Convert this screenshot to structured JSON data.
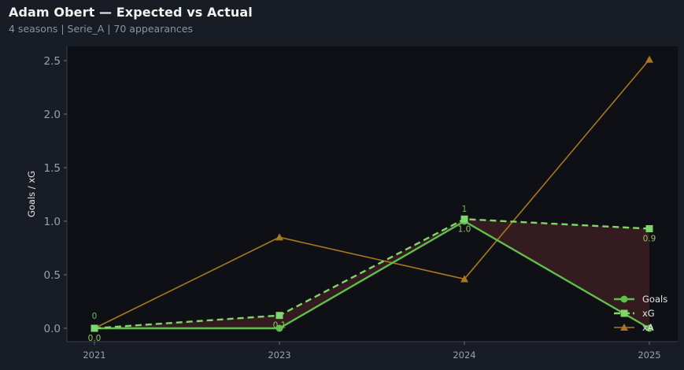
{
  "header": {
    "title": "Adam Obert — Expected vs Actual",
    "subtitle": "4 seasons | Serie_A | 70 appearances"
  },
  "colors": {
    "goals": "#5fbf4a",
    "xg": "#7fd66a",
    "xa": "#a8781e",
    "fill_under": "#3a1d22",
    "plot_bg": "#0e1016",
    "page_bg": "#181c24"
  },
  "chart_data": {
    "type": "line",
    "categories": [
      "2021",
      "2023",
      "2024",
      "2025"
    ],
    "ylabel": "Goals / xG",
    "ylim": [
      -0.1,
      2.6
    ],
    "yticks": [
      "0.0",
      "0.5",
      "1.0",
      "1.5",
      "2.0",
      "2.5"
    ],
    "grid": false,
    "legend": "bottom-right",
    "series": [
      {
        "name": "Goals",
        "values": [
          0,
          0,
          1,
          0
        ],
        "marker": "circle",
        "style": "solid"
      },
      {
        "name": "xG",
        "values": [
          0.0,
          0.12,
          1.02,
          0.93
        ],
        "marker": "square",
        "style": "dashed"
      },
      {
        "name": "xA",
        "values": [
          0.0,
          0.85,
          0.46,
          2.51
        ],
        "marker": "triangle",
        "style": "solid"
      }
    ],
    "annotations": {
      "goals": [
        "0",
        "",
        "1",
        ""
      ],
      "xg": [
        "0.0",
        "0.1",
        "1.0",
        "0.9"
      ]
    }
  }
}
